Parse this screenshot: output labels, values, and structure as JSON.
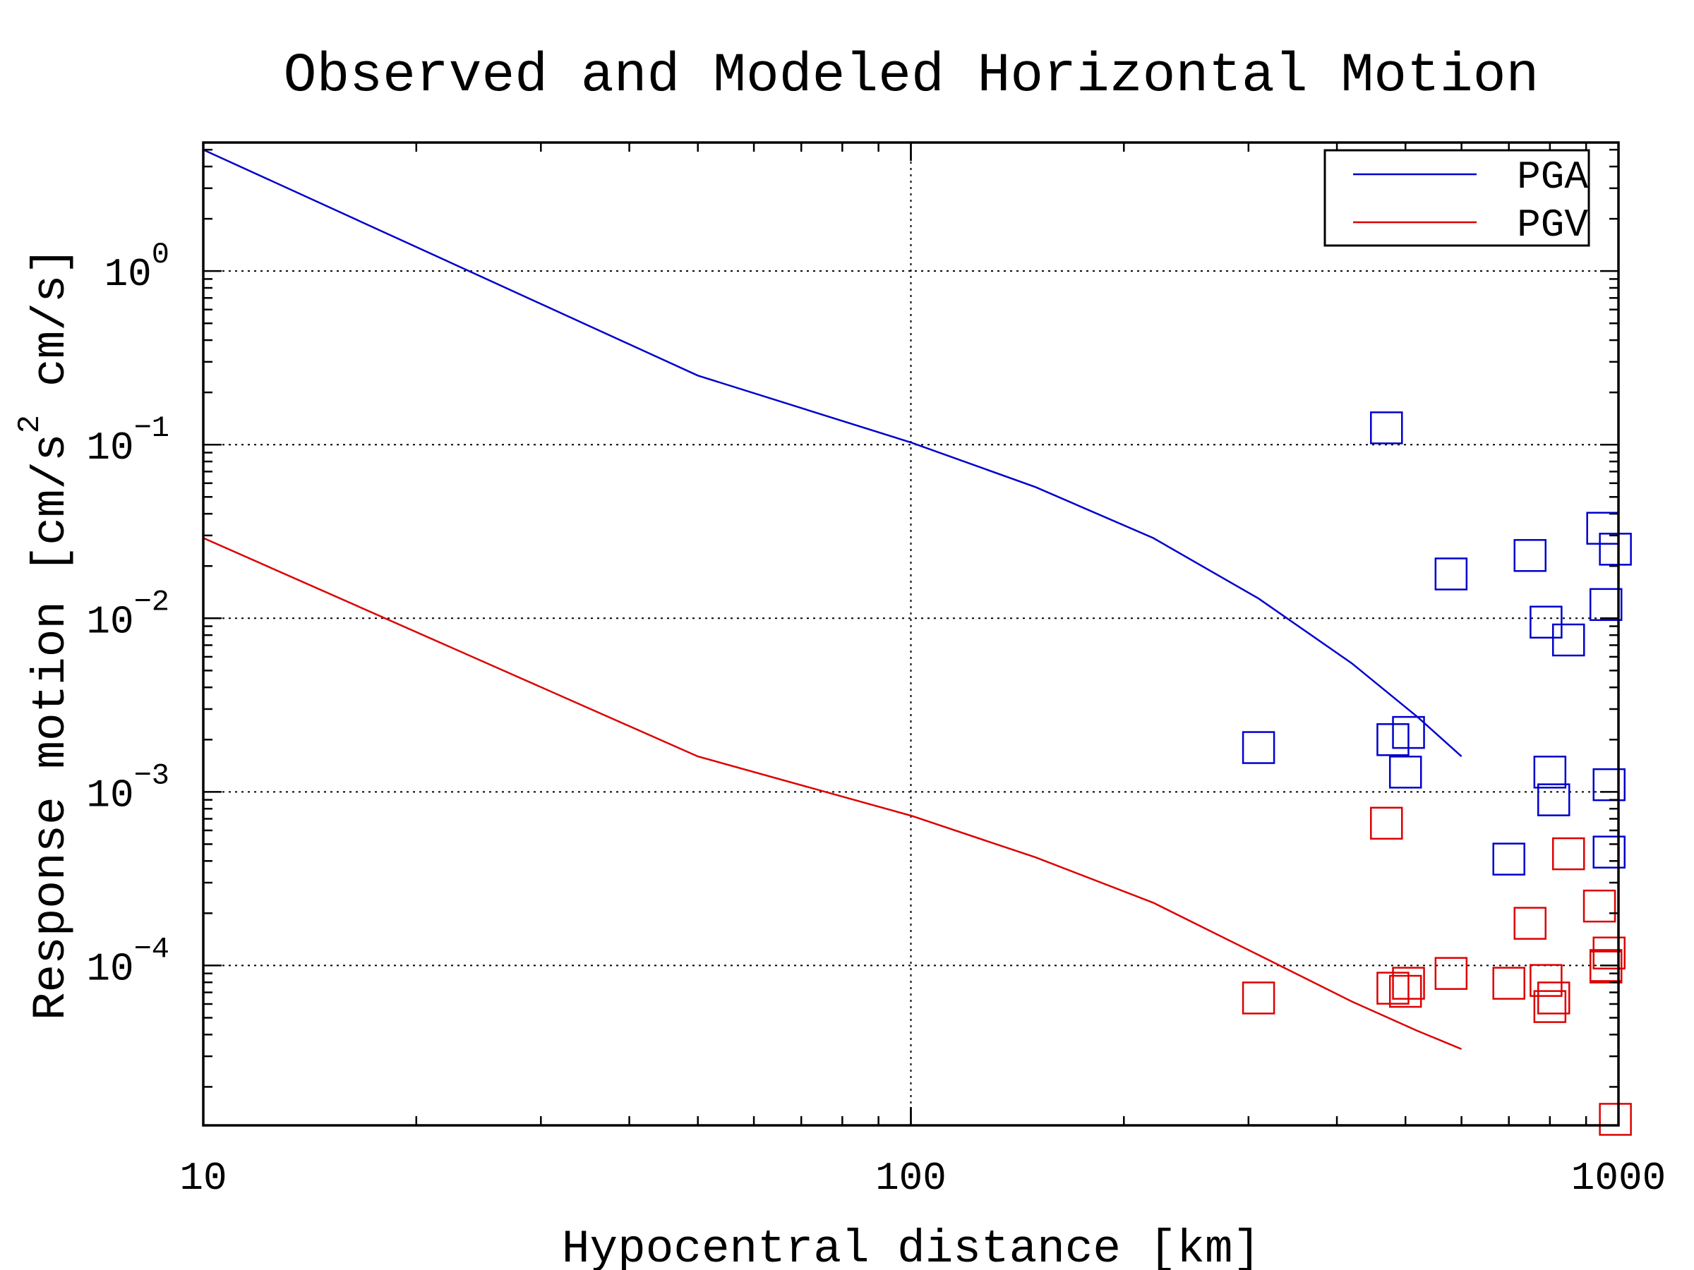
{
  "chart_data": {
    "type": "line",
    "title": "Observed and Modeled Horizontal Motion",
    "xlabel": "Hypocentral distance [km]",
    "ylabel": "Response motion [cm/s² cm/s]",
    "xscale": "log",
    "yscale": "log",
    "xlim": [
      10,
      1000
    ],
    "ylim": [
      1.2e-05,
      5.5
    ],
    "grid": true,
    "legend_position": "top-right",
    "x_ticks": [
      {
        "value": 10,
        "label": "10"
      },
      {
        "value": 100,
        "label": "100"
      },
      {
        "value": 1000,
        "label": "1000"
      }
    ],
    "y_ticks": [
      {
        "value": 1,
        "base": "10",
        "exp": "0"
      },
      {
        "value": 0.1,
        "base": "10",
        "exp": "−1"
      },
      {
        "value": 0.01,
        "base": "10",
        "exp": "−2"
      },
      {
        "value": 0.001,
        "base": "10",
        "exp": "−3"
      },
      {
        "value": 0.0001,
        "base": "10",
        "exp": "−4"
      }
    ],
    "ylabel_parts": {
      "lead": "Response motion [cm/s",
      "sup": "2",
      "tail": "cm/s]"
    },
    "series": [
      {
        "name": "PGA",
        "color": "#0000cc",
        "model": {
          "x": [
            10,
            50,
            100,
            150,
            220,
            310,
            420,
            520,
            600
          ],
          "y": [
            5.0,
            0.25,
            0.103,
            0.057,
            0.029,
            0.013,
            0.0055,
            0.0027,
            0.0016
          ]
        },
        "observed": {
          "x": [
            470,
            480,
            500,
            505,
            310,
            580,
            700,
            750,
            790,
            800,
            810,
            850,
            950,
            960,
            970,
            990,
            970
          ],
          "y": [
            0.125,
            0.002,
            0.0013,
            0.0022,
            0.0018,
            0.018,
            0.00041,
            0.023,
            0.0095,
            0.0013,
            0.0009,
            0.0075,
            0.033,
            0.012,
            0.00045,
            0.025,
            0.0011
          ]
        }
      },
      {
        "name": "PGV",
        "color": "#dd0000",
        "model": {
          "x": [
            10,
            50,
            100,
            150,
            220,
            310,
            420,
            520,
            600
          ],
          "y": [
            0.029,
            0.0016,
            0.00073,
            0.00042,
            0.00023,
            0.000115,
            6.2e-05,
            4.2e-05,
            3.3e-05
          ]
        },
        "observed": {
          "x": [
            310,
            470,
            480,
            500,
            505,
            580,
            700,
            750,
            790,
            800,
            810,
            850,
            940,
            960,
            970,
            990,
            960
          ],
          "y": [
            6.5e-05,
            0.00066,
            7.4e-05,
            7.1e-05,
            7.9e-05,
            9e-05,
            7.9e-05,
            0.000175,
            8.2e-05,
            5.8e-05,
            6.5e-05,
            0.00044,
            0.00022,
            0.0001,
            0.000118,
            1.3e-05,
            9.8e-05
          ]
        }
      }
    ]
  }
}
